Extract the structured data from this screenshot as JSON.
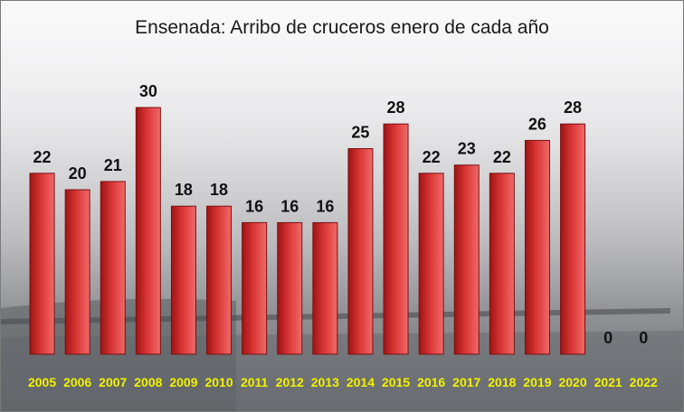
{
  "chart_data": {
    "type": "bar",
    "title": "Ensenada: Arribo de cruceros enero de cada año",
    "xlabel": "",
    "ylabel": "",
    "categories": [
      "2005",
      "2006",
      "2007",
      "2008",
      "2009",
      "2010",
      "2011",
      "2012",
      "2013",
      "2014",
      "2015",
      "2016",
      "2017",
      "2018",
      "2019",
      "2020",
      "2021",
      "2022"
    ],
    "values": [
      22,
      20,
      21,
      30,
      18,
      18,
      16,
      16,
      16,
      25,
      28,
      22,
      23,
      22,
      26,
      28,
      0,
      0
    ],
    "ylim": [
      0,
      30
    ],
    "grid": false,
    "legend": "none",
    "colors": {
      "bar_top": "#f26a6a",
      "bar_mid": "#d93535",
      "bar_bottom": "#9e1414",
      "bar_edge": "#7a1010",
      "value_label": "#111111",
      "tick_label": "#f2f200"
    }
  }
}
